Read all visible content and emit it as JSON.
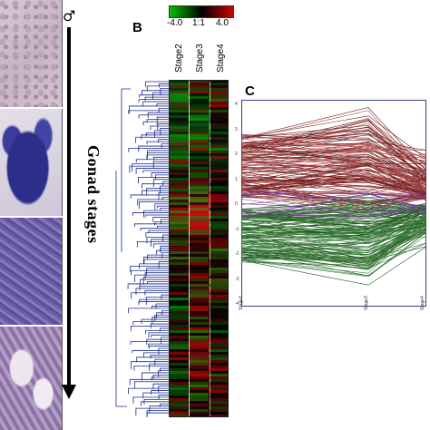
{
  "panel_b": {
    "label": "B",
    "legend": {
      "min": "-4.0",
      "mid": "1:1",
      "max": "4.0",
      "colors": {
        "low": "#00c000",
        "mid": "#000000",
        "high": "#d00000"
      }
    },
    "stages": [
      "Stage2",
      "Stage3",
      "Stage4"
    ]
  },
  "panel_c": {
    "label": "C",
    "yticks": [
      "4",
      "3",
      "2",
      "1",
      "0",
      "-1",
      "-2",
      "-3",
      "-4"
    ],
    "xticks": [
      "Stage2",
      "Stage3",
      "Stage4"
    ]
  },
  "side": {
    "symbol": "♂",
    "axis_label": "Gonad stages"
  }
}
